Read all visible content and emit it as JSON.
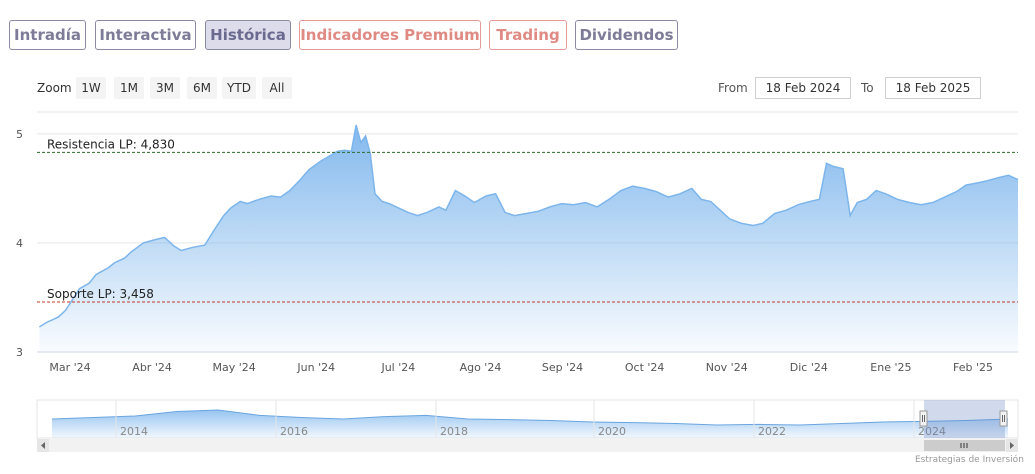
{
  "tabs": [
    {
      "label": "Intradía"
    },
    {
      "label": "Interactiva"
    },
    {
      "label": "Histórica"
    },
    {
      "label": "Indicadores Premium"
    },
    {
      "label": "Trading"
    },
    {
      "label": "Dividendos"
    }
  ],
  "zoom": {
    "label": "Zoom",
    "buttons": [
      "1W",
      "1M",
      "3M",
      "6M",
      "YTD",
      "All"
    ]
  },
  "range": {
    "from_label": "From",
    "from_value": "18 Feb 2024",
    "to_label": "To",
    "to_value": "18 Feb 2025"
  },
  "credit": "Estrategias de Inversión",
  "colors": {
    "line": "#7cb5ec",
    "resistance": "#2e6b2e",
    "support": "#c0392b"
  },
  "chart_data": {
    "type": "area",
    "x_labels": [
      "Mar '24",
      "Abr '24",
      "May '24",
      "Jun '24",
      "Jul '24",
      "Ago '24",
      "Sep '24",
      "Oct '24",
      "Nov '24",
      "Dic '24",
      "Ene '25",
      "Feb '25"
    ],
    "y_ticks": [
      "3",
      "4",
      "5"
    ],
    "ylim": [
      3,
      5.2
    ],
    "grid": true,
    "series": [
      {
        "values": [
          [
            "2024-02-19",
            3.23
          ],
          [
            "2024-02-22",
            3.27
          ],
          [
            "2024-02-27",
            3.32
          ],
          [
            "2024-03-01",
            3.38
          ],
          [
            "2024-03-04",
            3.48
          ],
          [
            "2024-03-07",
            3.58
          ],
          [
            "2024-03-11",
            3.63
          ],
          [
            "2024-03-14",
            3.71
          ],
          [
            "2024-03-19",
            3.77
          ],
          [
            "2024-03-22",
            3.82
          ],
          [
            "2024-03-26",
            3.86
          ],
          [
            "2024-03-29",
            3.92
          ],
          [
            "2024-04-03",
            4.0
          ],
          [
            "2024-04-08",
            4.03
          ],
          [
            "2024-04-12",
            4.05
          ],
          [
            "2024-04-16",
            3.97
          ],
          [
            "2024-04-19",
            3.93
          ],
          [
            "2024-04-24",
            3.96
          ],
          [
            "2024-04-29",
            3.98
          ],
          [
            "2024-05-03",
            4.12
          ],
          [
            "2024-05-07",
            4.25
          ],
          [
            "2024-05-10",
            4.32
          ],
          [
            "2024-05-14",
            4.38
          ],
          [
            "2024-05-17",
            4.36
          ],
          [
            "2024-05-22",
            4.4
          ],
          [
            "2024-05-27",
            4.43
          ],
          [
            "2024-05-31",
            4.42
          ],
          [
            "2024-06-04",
            4.48
          ],
          [
            "2024-06-08",
            4.57
          ],
          [
            "2024-06-12",
            4.67
          ],
          [
            "2024-06-17",
            4.75
          ],
          [
            "2024-06-21",
            4.8
          ],
          [
            "2024-06-24",
            4.84
          ],
          [
            "2024-06-27",
            4.85
          ],
          [
            "2024-06-30",
            4.84
          ],
          [
            "2024-07-02",
            5.08
          ],
          [
            "2024-07-04",
            4.92
          ],
          [
            "2024-07-06",
            4.98
          ],
          [
            "2024-07-08",
            4.82
          ],
          [
            "2024-07-10",
            4.45
          ],
          [
            "2024-07-13",
            4.38
          ],
          [
            "2024-07-16",
            4.36
          ],
          [
            "2024-07-19",
            4.33
          ],
          [
            "2024-07-24",
            4.28
          ],
          [
            "2024-07-28",
            4.25
          ],
          [
            "2024-08-01",
            4.28
          ],
          [
            "2024-08-06",
            4.33
          ],
          [
            "2024-08-09",
            4.3
          ],
          [
            "2024-08-13",
            4.48
          ],
          [
            "2024-08-17",
            4.43
          ],
          [
            "2024-08-21",
            4.37
          ],
          [
            "2024-08-26",
            4.43
          ],
          [
            "2024-08-30",
            4.45
          ],
          [
            "2024-09-03",
            4.28
          ],
          [
            "2024-09-07",
            4.25
          ],
          [
            "2024-09-12",
            4.27
          ],
          [
            "2024-09-17",
            4.29
          ],
          [
            "2024-09-22",
            4.33
          ],
          [
            "2024-09-27",
            4.36
          ],
          [
            "2024-10-02",
            4.35
          ],
          [
            "2024-10-07",
            4.37
          ],
          [
            "2024-10-12",
            4.33
          ],
          [
            "2024-10-17",
            4.4
          ],
          [
            "2024-10-22",
            4.48
          ],
          [
            "2024-10-27",
            4.52
          ],
          [
            "2024-11-01",
            4.5
          ],
          [
            "2024-11-06",
            4.47
          ],
          [
            "2024-11-11",
            4.42
          ],
          [
            "2024-11-16",
            4.45
          ],
          [
            "2024-11-21",
            4.5
          ],
          [
            "2024-11-25",
            4.4
          ],
          [
            "2024-11-29",
            4.38
          ],
          [
            "2024-12-03",
            4.3
          ],
          [
            "2024-12-07",
            4.22
          ],
          [
            "2024-12-12",
            4.18
          ],
          [
            "2024-12-17",
            4.16
          ],
          [
            "2024-12-21",
            4.18
          ],
          [
            "2024-12-26",
            4.27
          ],
          [
            "2024-12-31",
            4.3
          ],
          [
            "2025-01-05",
            4.35
          ],
          [
            "2025-01-10",
            4.38
          ],
          [
            "2025-01-14",
            4.4
          ],
          [
            "2025-01-17",
            4.73
          ],
          [
            "2025-01-20",
            4.7
          ],
          [
            "2025-01-24",
            4.68
          ],
          [
            "2025-01-27",
            4.25
          ],
          [
            "2025-01-30",
            4.37
          ],
          [
            "2025-02-03",
            4.4
          ],
          [
            "2025-02-07",
            4.48
          ],
          [
            "2025-02-11",
            4.45
          ],
          [
            "2025-02-16",
            4.4
          ],
          [
            "2025-02-21",
            4.37
          ],
          [
            "2025-02-26",
            4.35
          ],
          [
            "2025-03-03",
            4.37
          ],
          [
            "2025-03-08",
            4.42
          ],
          [
            "2025-03-13",
            4.47
          ],
          [
            "2025-03-17",
            4.53
          ],
          [
            "2025-03-22",
            4.55
          ],
          [
            "2025-03-26",
            4.57
          ],
          [
            "2025-03-31",
            4.6
          ],
          [
            "2025-04-04",
            4.62
          ],
          [
            "2025-04-08",
            4.58
          ]
        ]
      }
    ],
    "annotations": [
      {
        "label": "Resistencia LP: 4,830",
        "value": 4.83,
        "kind": "resistance"
      },
      {
        "label": "Soporte LP: 3,458",
        "value": 3.458,
        "kind": "support"
      }
    ],
    "navigator": {
      "year_labels": [
        "2014",
        "2016",
        "2018",
        "2020",
        "2022",
        "2024"
      ],
      "values": [
        0.5,
        0.55,
        0.6,
        0.75,
        0.8,
        0.62,
        0.55,
        0.5,
        0.58,
        0.62,
        0.5,
        0.48,
        0.45,
        0.4,
        0.38,
        0.35,
        0.3,
        0.32,
        0.3,
        0.35,
        0.4,
        0.42,
        0.45,
        0.5
      ]
    }
  }
}
